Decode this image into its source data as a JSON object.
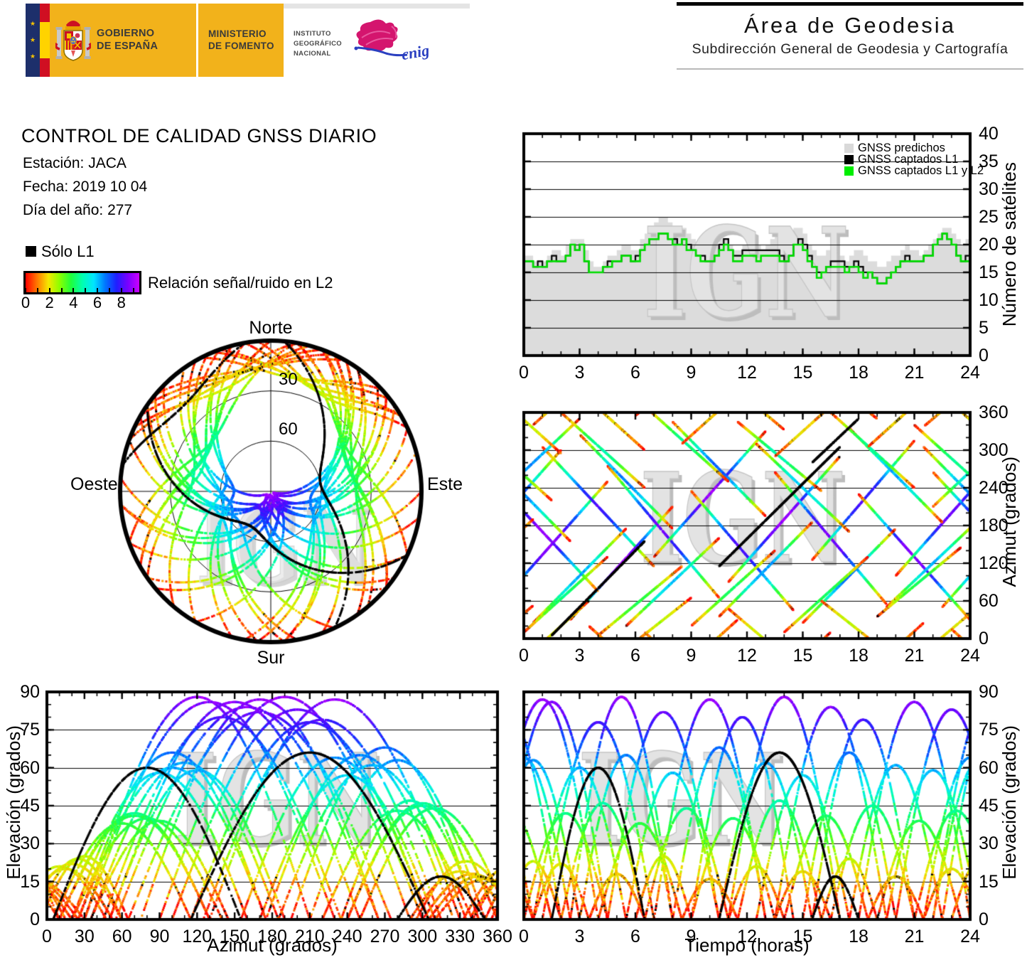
{
  "banner": {
    "gobierno": [
      "GOBIERNO",
      "DE ESPAÑA"
    ],
    "ministerio": [
      "MINISTERIO",
      "DE FOMENTO"
    ],
    "instituto": [
      "INSTITUTO",
      "GEOGRÁFICO",
      "NACIONAL"
    ],
    "cnig": "cnig"
  },
  "header": {
    "title": "Área de Geodesia",
    "subtitle": "Subdirección General de Geodesia y Cartografía"
  },
  "report": {
    "title": "CONTROL DE CALIDAD GNSS DIARIO",
    "station": "Estación: JACA",
    "date": "Fecha: 2019 10 04",
    "doy": "Día del año: 277"
  },
  "legend": {
    "solo_l1": "Sólo L1",
    "colorbar_label": "Relación señal/ruido en L2",
    "colorbar_tick_labels": [
      "0",
      "2",
      "4",
      "6",
      "8"
    ],
    "colorbar_range": [
      0,
      9.5
    ],
    "colormap": [
      "#ff0000",
      "#ff7700",
      "#f5e800",
      "#8aff00",
      "#1fff3c",
      "#00ffb0",
      "#00e5ff",
      "#0077ff",
      "#1f1fff",
      "#7a00ff",
      "#cc00ff"
    ]
  },
  "watermark": {
    "text": "IGN"
  },
  "colors": {
    "area_gray": "#dcdcdc",
    "l1_black": "#000000",
    "l1l2_green": "#00dd00",
    "banner_amber": "#f2b21b"
  },
  "chart_data": [
    {
      "id": "sats",
      "type": "area",
      "ylabel": "Número de satélites",
      "xlim": [
        0,
        24
      ],
      "ylim": [
        0,
        40
      ],
      "xticks": [
        0,
        3,
        6,
        9,
        12,
        15,
        18,
        21,
        24
      ],
      "yticks": [
        0,
        5,
        10,
        15,
        20,
        25,
        30,
        35,
        40
      ],
      "grid_y": [
        5,
        10,
        15,
        20,
        25,
        30,
        35
      ],
      "step_hours": 0.25,
      "legend": [
        {
          "label": "GNSS predichos",
          "color": "#d9d9d9"
        },
        {
          "label": "GNSS captados L1",
          "color": "#000000"
        },
        {
          "label": "GNSS captados L1 y L2",
          "color": "#00ee00"
        }
      ],
      "series": [
        {
          "name": "GNSS predichos",
          "style": "area",
          "values": [
            18,
            18,
            17,
            17,
            17,
            18,
            19,
            19,
            18,
            20,
            21,
            21,
            21,
            19,
            17,
            16,
            16,
            17,
            18,
            18,
            19,
            20,
            20,
            19,
            19,
            21,
            22,
            23,
            24,
            25,
            25,
            24,
            23,
            22,
            23,
            22,
            21,
            20,
            20,
            19,
            19,
            20,
            21,
            21,
            20,
            19,
            19,
            20,
            20,
            21,
            20,
            19,
            20,
            21,
            22,
            21,
            20,
            21,
            23,
            23,
            22,
            20,
            19,
            18,
            18,
            19,
            19,
            18,
            18,
            17,
            18,
            19,
            19,
            18,
            17,
            17,
            16,
            16,
            17,
            18,
            18,
            19,
            20,
            19,
            19,
            18,
            19,
            20,
            21,
            22,
            23,
            23,
            22,
            21,
            20,
            21
          ]
        },
        {
          "name": "GNSS captados L1",
          "style": "step",
          "values": [
            17,
            17,
            16,
            17,
            16,
            17,
            18,
            17,
            17,
            18,
            20,
            19,
            20,
            17,
            15,
            15,
            15,
            16,
            17,
            17,
            17,
            18,
            18,
            17,
            18,
            19,
            20,
            21,
            21,
            22,
            22,
            21,
            21,
            20,
            21,
            20,
            19,
            18,
            18,
            17,
            17,
            18,
            20,
            21,
            19,
            18,
            18,
            19,
            19,
            19,
            19,
            19,
            19,
            19,
            19,
            18,
            17,
            18,
            20,
            21,
            20,
            18,
            16,
            15,
            15,
            16,
            17,
            17,
            17,
            16,
            16,
            17,
            16,
            15,
            15,
            14,
            13,
            13,
            14,
            15,
            16,
            17,
            18,
            17,
            17,
            17,
            18,
            18,
            20,
            21,
            22,
            21,
            20,
            18,
            17,
            18
          ]
        },
        {
          "name": "GNSS captados L1 y L2",
          "style": "step",
          "values": [
            17,
            17,
            16,
            16,
            16,
            17,
            17,
            17,
            17,
            18,
            20,
            19,
            20,
            17,
            15,
            15,
            15,
            16,
            16,
            17,
            17,
            18,
            18,
            17,
            17,
            19,
            20,
            21,
            21,
            22,
            22,
            21,
            20,
            20,
            21,
            19,
            19,
            18,
            17,
            17,
            17,
            18,
            19,
            20,
            19,
            17,
            17,
            18,
            18,
            18,
            17,
            18,
            18,
            18,
            18,
            17,
            17,
            18,
            20,
            20,
            19,
            17,
            16,
            14,
            15,
            16,
            16,
            16,
            16,
            15,
            16,
            16,
            15,
            14,
            15,
            14,
            13,
            13,
            14,
            15,
            16,
            17,
            17,
            17,
            17,
            17,
            18,
            18,
            20,
            21,
            22,
            21,
            20,
            18,
            17,
            17
          ]
        }
      ]
    },
    {
      "id": "skyplot",
      "type": "polar-tracks",
      "compass": {
        "n": "Norte",
        "s": "Sur",
        "e": "Este",
        "w": "Oeste"
      },
      "ring_values_deg": [
        30,
        60
      ],
      "ring_labels": [
        "30",
        "60"
      ],
      "tracks_ref": "passes"
    },
    {
      "id": "az",
      "type": "tracks",
      "proj": "azimuth_vs_time",
      "ylabel": "Azimut (grados)",
      "xlim": [
        0,
        24
      ],
      "ylim": [
        0,
        360
      ],
      "xticks": [
        0,
        3,
        6,
        9,
        12,
        15,
        18,
        21,
        24
      ],
      "yticks": [
        0,
        60,
        120,
        180,
        240,
        300,
        360
      ],
      "grid_y": [
        60,
        120,
        180,
        240,
        300
      ],
      "tracks_ref": "passes"
    },
    {
      "id": "elaz",
      "type": "tracks",
      "proj": "elevation_vs_azimuth",
      "xlabel": "Azimut (grados)",
      "ylabel": "Elevación (grados)",
      "xlim": [
        0,
        360
      ],
      "ylim": [
        0,
        90
      ],
      "xticks": [
        0,
        30,
        60,
        90,
        120,
        150,
        180,
        210,
        240,
        270,
        300,
        330,
        360
      ],
      "yticks": [
        0,
        15,
        30,
        45,
        60,
        75,
        90
      ],
      "grid_y": [
        15,
        30,
        45,
        60,
        75
      ],
      "tracks_ref": "passes"
    },
    {
      "id": "elt",
      "type": "tracks",
      "proj": "elevation_vs_time",
      "xlabel": "Tiempo (horas)",
      "ylabel": "Elevación (grados)",
      "xlim": [
        0,
        24
      ],
      "ylim": [
        0,
        90
      ],
      "xticks": [
        0,
        3,
        6,
        9,
        12,
        15,
        18,
        21,
        24
      ],
      "yticks": [
        0,
        15,
        30,
        45,
        60,
        75,
        90
      ],
      "grid_y": [
        15,
        30,
        45,
        60,
        75
      ],
      "tracks_ref": "passes"
    }
  ],
  "passes": [
    {
      "t0": -1.5,
      "d": 6.0,
      "a": 150,
      "s": 200,
      "e": 86
    },
    {
      "t0": 1.0,
      "d": 6.0,
      "a": 210,
      "s": -190,
      "e": 78
    },
    {
      "t0": 2.5,
      "d": 5.5,
      "a": 120,
      "s": 180,
      "e": 88
    },
    {
      "t0": 4.5,
      "d": 6.0,
      "a": 170,
      "s": -210,
      "e": 82
    },
    {
      "t0": 7.0,
      "d": 6.0,
      "a": 230,
      "s": 200,
      "e": 87
    },
    {
      "t0": 9.0,
      "d": 5.5,
      "a": 140,
      "s": -190,
      "e": 80
    },
    {
      "t0": 11.0,
      "d": 6.0,
      "a": 190,
      "s": 200,
      "e": 88
    },
    {
      "t0": 13.5,
      "d": 6.0,
      "a": 160,
      "s": -210,
      "e": 84
    },
    {
      "t0": 15.5,
      "d": 5.5,
      "a": 220,
      "s": 190,
      "e": 79
    },
    {
      "t0": 18.0,
      "d": 6.0,
      "a": 130,
      "s": -200,
      "e": 86
    },
    {
      "t0": 20.0,
      "d": 6.0,
      "a": 200,
      "s": 200,
      "e": 83
    },
    {
      "t0": 22.0,
      "d": 6.0,
      "a": 170,
      "s": -190,
      "e": 87
    },
    {
      "t0": 0.5,
      "d": 5.0,
      "a": 100,
      "s": 150,
      "e": 60
    },
    {
      "t0": 3.0,
      "d": 5.0,
      "a": 250,
      "s": -150,
      "e": 65
    },
    {
      "t0": 5.5,
      "d": 5.0,
      "a": 90,
      "s": 140,
      "e": 58
    },
    {
      "t0": 8.0,
      "d": 5.0,
      "a": 270,
      "s": -150,
      "e": 68
    },
    {
      "t0": 10.5,
      "d": 5.0,
      "a": 110,
      "s": 150,
      "e": 62
    },
    {
      "t0": 12.5,
      "d": 5.0,
      "a": 240,
      "s": -140,
      "e": 57
    },
    {
      "t0": 15.0,
      "d": 5.0,
      "a": 100,
      "s": 150,
      "e": 66
    },
    {
      "t0": 17.5,
      "d": 5.0,
      "a": 260,
      "s": -150,
      "e": 61
    },
    {
      "t0": 19.5,
      "d": 5.0,
      "a": 120,
      "s": 140,
      "e": 59
    },
    {
      "t0": 21.5,
      "d": 5.0,
      "a": 230,
      "s": -150,
      "e": 64
    },
    {
      "t0": -2.0,
      "d": 5.0,
      "a": 280,
      "s": 140,
      "e": 63
    },
    {
      "t0": 0.0,
      "d": 4.5,
      "a": 70,
      "s": 120,
      "e": 42
    },
    {
      "t0": 2.0,
      "d": 4.5,
      "a": 300,
      "s": -120,
      "e": 46
    },
    {
      "t0": 4.0,
      "d": 4.5,
      "a": 60,
      "s": 110,
      "e": 38
    },
    {
      "t0": 6.5,
      "d": 4.5,
      "a": 310,
      "s": -120,
      "e": 44
    },
    {
      "t0": 9.0,
      "d": 4.5,
      "a": 80,
      "s": 120,
      "e": 40
    },
    {
      "t0": 11.5,
      "d": 4.5,
      "a": 290,
      "s": -110,
      "e": 47
    },
    {
      "t0": 14.0,
      "d": 4.5,
      "a": 70,
      "s": 120,
      "e": 41
    },
    {
      "t0": 16.5,
      "d": 4.5,
      "a": 300,
      "s": -120,
      "e": 45
    },
    {
      "t0": 19.0,
      "d": 4.5,
      "a": 90,
      "s": 110,
      "e": 39
    },
    {
      "t0": 21.0,
      "d": 4.5,
      "a": 280,
      "s": -120,
      "e": 43
    },
    {
      "t0": 0.5,
      "d": 3.0,
      "a": 20,
      "s": 80,
      "e": 22
    },
    {
      "t0": 3.5,
      "d": 3.0,
      "a": 340,
      "s": -80,
      "e": 18
    },
    {
      "t0": 6.0,
      "d": 3.0,
      "a": 30,
      "s": 70,
      "e": 25
    },
    {
      "t0": 8.5,
      "d": 3.0,
      "a": 350,
      "s": 80,
      "e": 16
    },
    {
      "t0": 11.0,
      "d": 3.0,
      "a": 10,
      "s": -75,
      "e": 21
    },
    {
      "t0": 13.5,
      "d": 3.0,
      "a": 330,
      "s": 80,
      "e": 19
    },
    {
      "t0": 16.0,
      "d": 3.0,
      "a": 25,
      "s": -70,
      "e": 24
    },
    {
      "t0": 18.5,
      "d": 3.0,
      "a": 345,
      "s": 80,
      "e": 17
    },
    {
      "t0": 21.5,
      "d": 3.0,
      "a": 15,
      "s": 75,
      "e": 20
    },
    {
      "t0": 23.0,
      "d": 3.0,
      "a": 335,
      "s": -80,
      "e": 23
    },
    {
      "t0": 10.5,
      "d": 6.5,
      "a": 210,
      "s": 190,
      "e": 66,
      "b": 1
    },
    {
      "t0": 1.5,
      "d": 5.0,
      "a": 80,
      "s": 150,
      "e": 60,
      "b": 1
    },
    {
      "t0": 15.5,
      "d": 2.5,
      "a": 315,
      "s": 70,
      "e": 17,
      "b": 1
    }
  ]
}
